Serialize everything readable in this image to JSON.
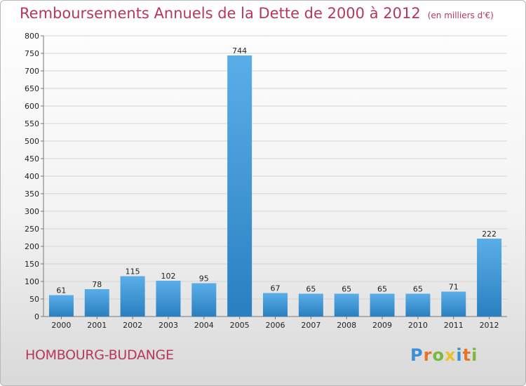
{
  "title": "Remboursements Annuels de la Dette de 2000 à 2012",
  "subtitle": "(en milliers d'€)",
  "place": "HOMBOURG-BUDANGE",
  "logo": {
    "text": "Proxiti",
    "letters": [
      {
        "ch": "P",
        "color": "#3a8fd6"
      },
      {
        "ch": "r",
        "color": "#e8732a"
      },
      {
        "ch": "o",
        "color": "#7ab93b"
      },
      {
        "ch": "x",
        "color": "#e8c42a"
      },
      {
        "ch": "i",
        "color": "#3a8fd6"
      },
      {
        "ch": "t",
        "color": "#e8732a"
      },
      {
        "ch": "i",
        "color": "#7ab93b"
      }
    ]
  },
  "colors": {
    "bar_top": "#5aaee8",
    "bar_bottom": "#2a7fc0",
    "title": "#b5385a"
  },
  "chart_data": {
    "type": "bar",
    "title": "Remboursements Annuels de la Dette de 2000 à 2012",
    "subtitle": "(en milliers d'€)",
    "categories": [
      "2000",
      "2001",
      "2002",
      "2003",
      "2004",
      "2005",
      "2006",
      "2007",
      "2008",
      "2009",
      "2010",
      "2011",
      "2012"
    ],
    "values": [
      61,
      78,
      115,
      102,
      95,
      744,
      67,
      65,
      65,
      65,
      65,
      71,
      222
    ],
    "ylim": [
      0,
      800
    ],
    "yticks": [
      0,
      50,
      100,
      150,
      200,
      250,
      300,
      350,
      400,
      450,
      500,
      550,
      600,
      650,
      700,
      750,
      800
    ],
    "grid": true,
    "data_labels": true
  }
}
